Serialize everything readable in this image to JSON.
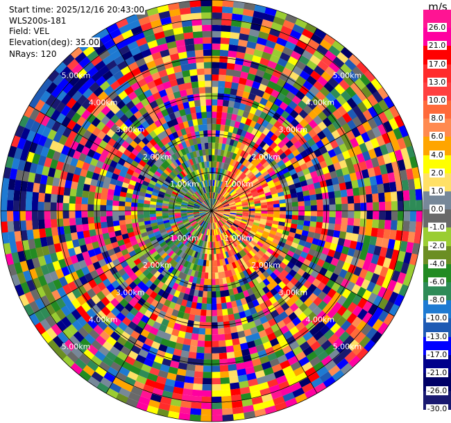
{
  "header": {
    "start_time": "Start time: 2025/12/16 20:43:00",
    "instrument": "WLS200s-181",
    "field": "Field: VEL",
    "elevation": "Elevation(deg): 35.00",
    "nrays": "NRays: 120"
  },
  "chart_data": {
    "type": "heatmap",
    "projection": "polar-ppi",
    "field": "VEL",
    "units": "m/s",
    "n_rays": 120,
    "elevation_deg": 35.0,
    "range_max_km": 5.5,
    "range_rings_km": [
      1,
      2,
      3,
      4,
      5
    ],
    "ring_label_text": [
      "1.00km",
      "2.00km",
      "3.00km",
      "4.00km",
      "5.00km"
    ],
    "spokes_deg": [
      0,
      30,
      60,
      90,
      120,
      150,
      180,
      210,
      240,
      270,
      300,
      330
    ],
    "colorbar": {
      "unit": "m/s",
      "ticks": [
        "26.0",
        "21.0",
        "17.0",
        "13.0",
        "10.0",
        "8.0",
        "6.0",
        "4.0",
        "2.0",
        "1.0",
        "0.0",
        "-1.0",
        "-2.0",
        "-4.0",
        "-6.0",
        "-8.0",
        "-10.0",
        "-13.0",
        "-17.0",
        "-21.0",
        "-26.0",
        "-30.0"
      ],
      "colors": [
        "#ff1493",
        "#ff00a0",
        "#ff0000",
        "#ff2b2b",
        "#ff4040",
        "#ff6a3a",
        "#ff8a50",
        "#ffa500",
        "#ffff00",
        "#ffe066",
        "#778899",
        "#696969",
        "#9acd32",
        "#6b8e23",
        "#228b22",
        "#2e8b57",
        "#1e7ad2",
        "#1e5ab4",
        "#0000ff",
        "#00008b",
        "#000066",
        "#191970"
      ]
    }
  }
}
